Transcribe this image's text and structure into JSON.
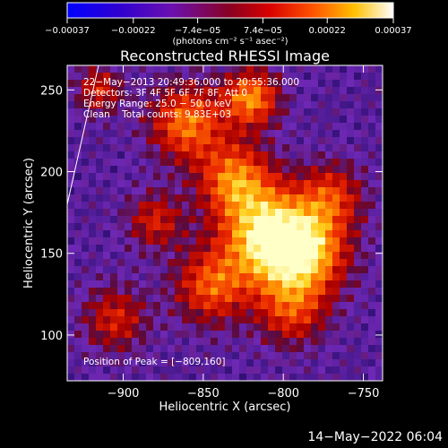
{
  "chart_data": {
    "type": "heatmap",
    "title": "Reconstructed RHESSI Image",
    "xlabel": "Heliocentric X (arcsec)",
    "ylabel": "Heliocentric Y (arcsec)",
    "xlim": [
      -935,
      -738
    ],
    "ylim": [
      72,
      265
    ],
    "x_ticks": [
      -900,
      -850,
      -800,
      -750
    ],
    "x_tick_labels": [
      "−900",
      "−850",
      "−800",
      "−750"
    ],
    "y_ticks": [
      100,
      150,
      200,
      250
    ],
    "y_tick_labels": [
      "100",
      "150",
      "200",
      "250"
    ],
    "colorbar": {
      "range": [
        -0.00037,
        0.00037
      ],
      "ticks": [
        -0.00037,
        -0.00022,
        -7.4e-05,
        7.4e-05,
        0.00022,
        0.00037
      ],
      "tick_labels": [
        "−0.00037",
        "−0.00022",
        "−7.4e−05",
        "7.4e−05",
        "0.00022",
        "0.00037"
      ],
      "unit": "(photons cm⁻² s⁻¹ asec⁻²)"
    },
    "annotations": [
      "22−May−2013 20:49:36.000 to 20:55:36.000",
      "Detectors: 3F 4F 5F 6F 7F 8F, Att 0",
      "Energy Range: 25.0 − 50.0 keV",
      "Clean    Total counts: 9.83E+03"
    ],
    "peak_label": "Position of Peak = [−809,160]",
    "peak": [
      -809,
      160
    ],
    "sources": [
      {
        "x": -809,
        "y": 160,
        "amp": 1.0,
        "sigma": 20
      },
      {
        "x": -785,
        "y": 150,
        "amp": 0.75,
        "sigma": 18
      },
      {
        "x": -830,
        "y": 195,
        "amp": 0.7,
        "sigma": 16
      },
      {
        "x": -860,
        "y": 230,
        "amp": 0.7,
        "sigma": 16
      },
      {
        "x": -820,
        "y": 245,
        "amp": 0.75,
        "sigma": 12
      },
      {
        "x": -845,
        "y": 130,
        "amp": 0.6,
        "sigma": 16
      },
      {
        "x": -795,
        "y": 115,
        "amp": 0.5,
        "sigma": 15
      },
      {
        "x": -770,
        "y": 185,
        "amp": 0.5,
        "sigma": 14
      },
      {
        "x": -880,
        "y": 170,
        "amp": 0.45,
        "sigma": 12
      },
      {
        "x": -905,
        "y": 110,
        "amp": 0.45,
        "sigma": 14
      },
      {
        "x": -915,
        "y": 250,
        "amp": 0.45,
        "sigma": 10
      }
    ]
  },
  "timestamp": "14−May−2022 06:04"
}
